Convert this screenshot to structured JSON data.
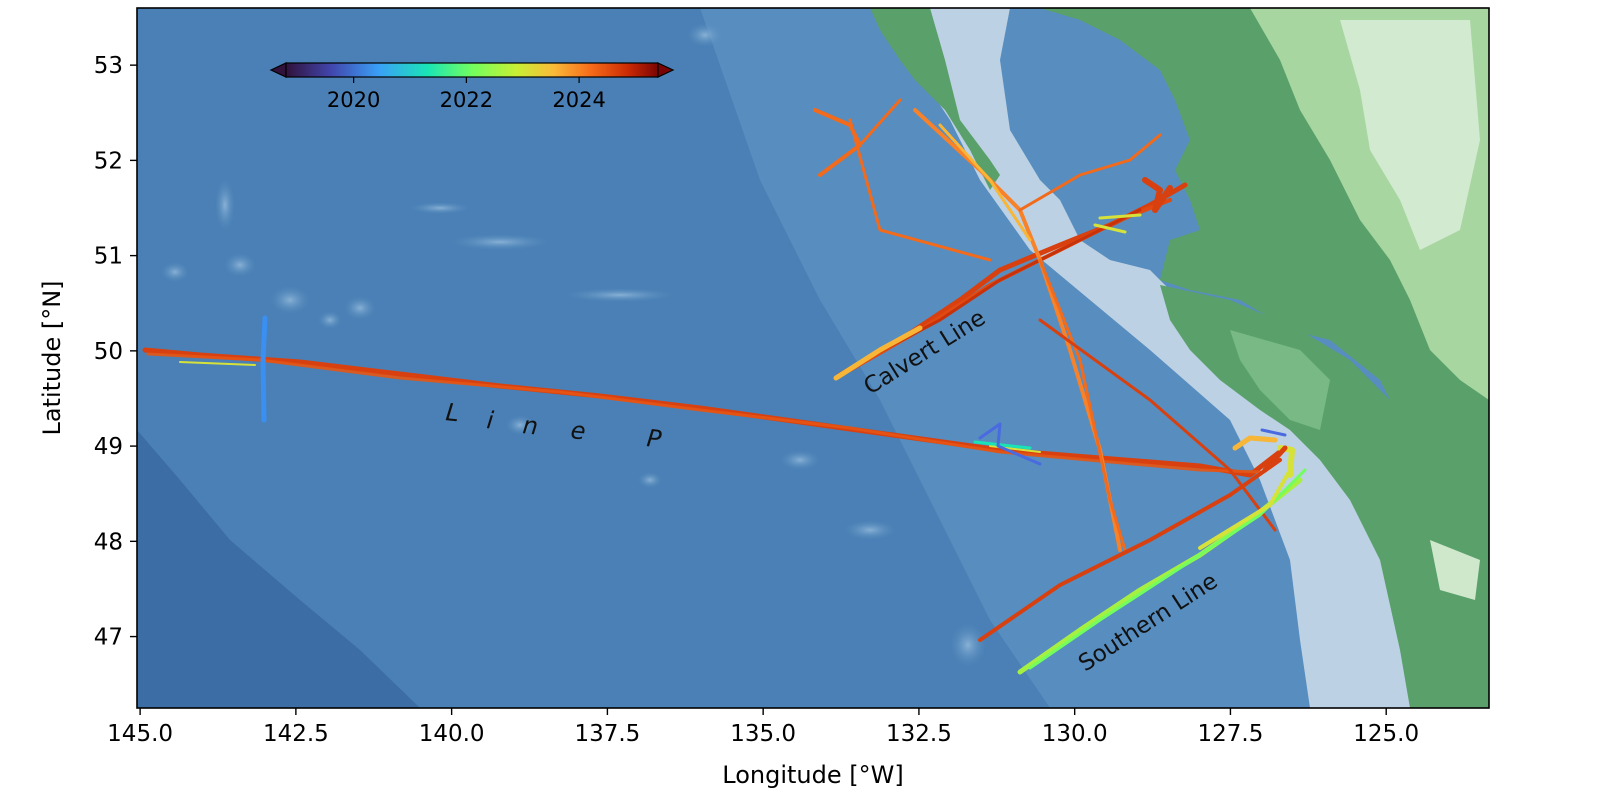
{
  "figure": {
    "xlabel": "Longitude [°W]",
    "ylabel": "Latitude [°N]",
    "x_ticks": [
      {
        "value": 145.0,
        "label": "145.0"
      },
      {
        "value": 142.5,
        "label": "142.5"
      },
      {
        "value": 140.0,
        "label": "140.0"
      },
      {
        "value": 137.5,
        "label": "137.5"
      },
      {
        "value": 135.0,
        "label": "135.0"
      },
      {
        "value": 132.5,
        "label": "132.5"
      },
      {
        "value": 130.0,
        "label": "130.0"
      },
      {
        "value": 127.5,
        "label": "127.5"
      },
      {
        "value": 125.0,
        "label": "125.0"
      }
    ],
    "y_ticks": [
      {
        "value": 53,
        "label": "53"
      },
      {
        "value": 52,
        "label": "52"
      },
      {
        "value": 51,
        "label": "51"
      },
      {
        "value": 50,
        "label": "50"
      },
      {
        "value": 49,
        "label": "49"
      },
      {
        "value": 48,
        "label": "48"
      },
      {
        "value": 47,
        "label": "47"
      }
    ],
    "extent": {
      "lon_w": [
        145.05,
        123.35
      ],
      "lat_n": [
        46.25,
        53.6
      ]
    },
    "colorbar": {
      "ticks": [
        {
          "value": 2020,
          "label": "2020"
        },
        {
          "value": 2022,
          "label": "2022"
        },
        {
          "value": 2024,
          "label": "2024"
        }
      ],
      "range": [
        2018.8,
        2025.4
      ],
      "colormap": "turbo",
      "extend": "both"
    },
    "annotations": [
      {
        "text": "Calvert Line"
      },
      {
        "text": "L i n e P",
        "letters": [
          "L",
          "i",
          "n",
          "e",
          "P"
        ]
      },
      {
        "text": "Southern Line"
      }
    ],
    "colors": {
      "ocean_deep": "#3a6ea5",
      "ocean_mid": "#4a83b8",
      "shelf": "#bed3e4",
      "land_low": "#5aa06b",
      "land_high": "#dcefd6",
      "track_2024": "#d9400f",
      "track_2023": "#f26a1b",
      "track_2022": "#f7b637",
      "track_2021": "#a6f041",
      "track_2020": "#3aa0f7"
    }
  }
}
